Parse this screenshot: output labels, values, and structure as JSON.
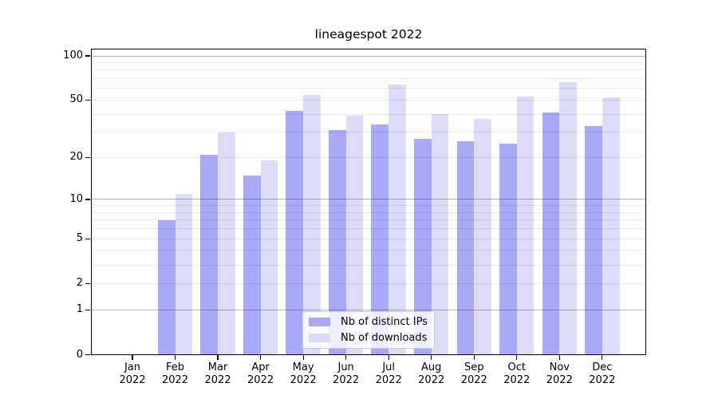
{
  "title": "lineagespot 2022",
  "colors": {
    "distinct_ips": "#a9a9f7",
    "downloads": "#dcdcf9",
    "axis": "#000000",
    "grid_minor": "#e8e8e8",
    "grid_major": "#b8b8b8",
    "legend_border": "#cccccc",
    "background": "#ffffff"
  },
  "legend": {
    "items": [
      {
        "label": "Nb of distinct IPs",
        "color": "#a9a9f7"
      },
      {
        "label": "Nb of downloads",
        "color": "#dcdcf9"
      }
    ]
  },
  "axes": {
    "y_tick_values": [
      100,
      50,
      20,
      10,
      5,
      2,
      1,
      0
    ],
    "y_tick_labels": [
      "100",
      "50",
      "20",
      "10",
      "5",
      "2",
      "1",
      "0"
    ],
    "y_major_gridlines": [
      1,
      10,
      100
    ],
    "y_minor_gridlines": [
      2,
      3,
      4,
      5,
      6,
      7,
      8,
      9,
      20,
      30,
      40,
      50,
      60,
      70,
      80,
      90
    ],
    "x_months": [
      "Jan",
      "Feb",
      "Mar",
      "Apr",
      "May",
      "Jun",
      "Jul",
      "Aug",
      "Sep",
      "Oct",
      "Nov",
      "Dec"
    ],
    "x_year": "2022"
  },
  "chart_data": {
    "type": "bar",
    "title": "lineagespot 2022",
    "categories": [
      "Jan 2022",
      "Feb 2022",
      "Mar 2022",
      "Apr 2022",
      "May 2022",
      "Jun 2022",
      "Jul 2022",
      "Aug 2022",
      "Sep 2022",
      "Oct 2022",
      "Nov 2022",
      "Dec 2022"
    ],
    "series": [
      {
        "name": "Nb of distinct IPs",
        "color": "#a9a9f7",
        "values": [
          0,
          7,
          21,
          15,
          42,
          31,
          34,
          27,
          26,
          25,
          41,
          33
        ]
      },
      {
        "name": "Nb of downloads",
        "color": "#dcdcf9",
        "values": [
          0,
          11,
          30,
          19,
          54,
          39,
          64,
          40,
          37,
          53,
          66,
          52
        ]
      }
    ],
    "yscale": "log1p",
    "ylim": [
      0,
      110
    ],
    "y_ticks": [
      100,
      50,
      20,
      10,
      5,
      2,
      1,
      0
    ],
    "grid": "both (minor light, major at 1/10/100 darker)",
    "legend_position": "inside lower-center"
  }
}
